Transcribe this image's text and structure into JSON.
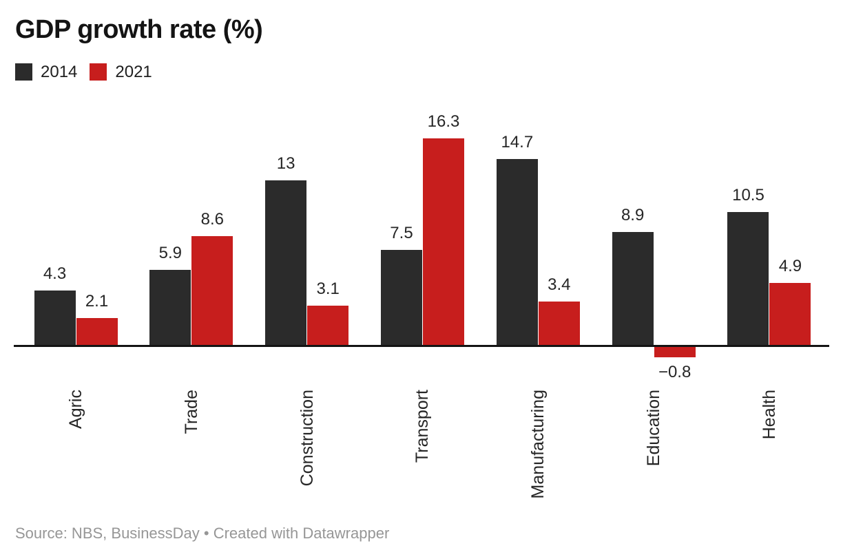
{
  "title": "GDP growth rate (%)",
  "legend": {
    "items": [
      {
        "label": "2014",
        "color": "#2b2b2b"
      },
      {
        "label": "2021",
        "color": "#c71e1d"
      }
    ]
  },
  "footer": {
    "text": "Source: NBS, BusinessDay • Created with Datawrapper"
  },
  "colors": {
    "series_2014": "#2b2b2b",
    "series_2021": "#c71e1d",
    "axis": "#141414",
    "value_label": "#262626",
    "footer_text": "#969696",
    "background": "#ffffff"
  },
  "chart_data": {
    "type": "bar",
    "title": "GDP growth rate (%)",
    "categories": [
      "Agric",
      "Trade",
      "Construction",
      "Transport",
      "Manufacturing",
      "Education",
      "Health"
    ],
    "series": [
      {
        "name": "2014",
        "color": "#2b2b2b",
        "values": [
          4.3,
          5.9,
          13,
          7.5,
          14.7,
          8.9,
          10.5
        ],
        "labels": [
          "4.3",
          "5.9",
          "13",
          "7.5",
          "14.7",
          "8.9",
          "10.5"
        ]
      },
      {
        "name": "2021",
        "color": "#c71e1d",
        "values": [
          2.1,
          8.6,
          3.1,
          16.3,
          3.4,
          -0.8,
          4.9
        ],
        "labels": [
          "2.1",
          "8.6",
          "3.1",
          "16.3",
          "3.4",
          "−0.8",
          "4.9"
        ]
      }
    ],
    "xlabel": "",
    "ylabel": "",
    "ylim": [
      -1,
      17
    ],
    "grid": false,
    "value_labels_shown": true,
    "legend_position": "top-left",
    "category_label_rotation_deg": -90
  }
}
